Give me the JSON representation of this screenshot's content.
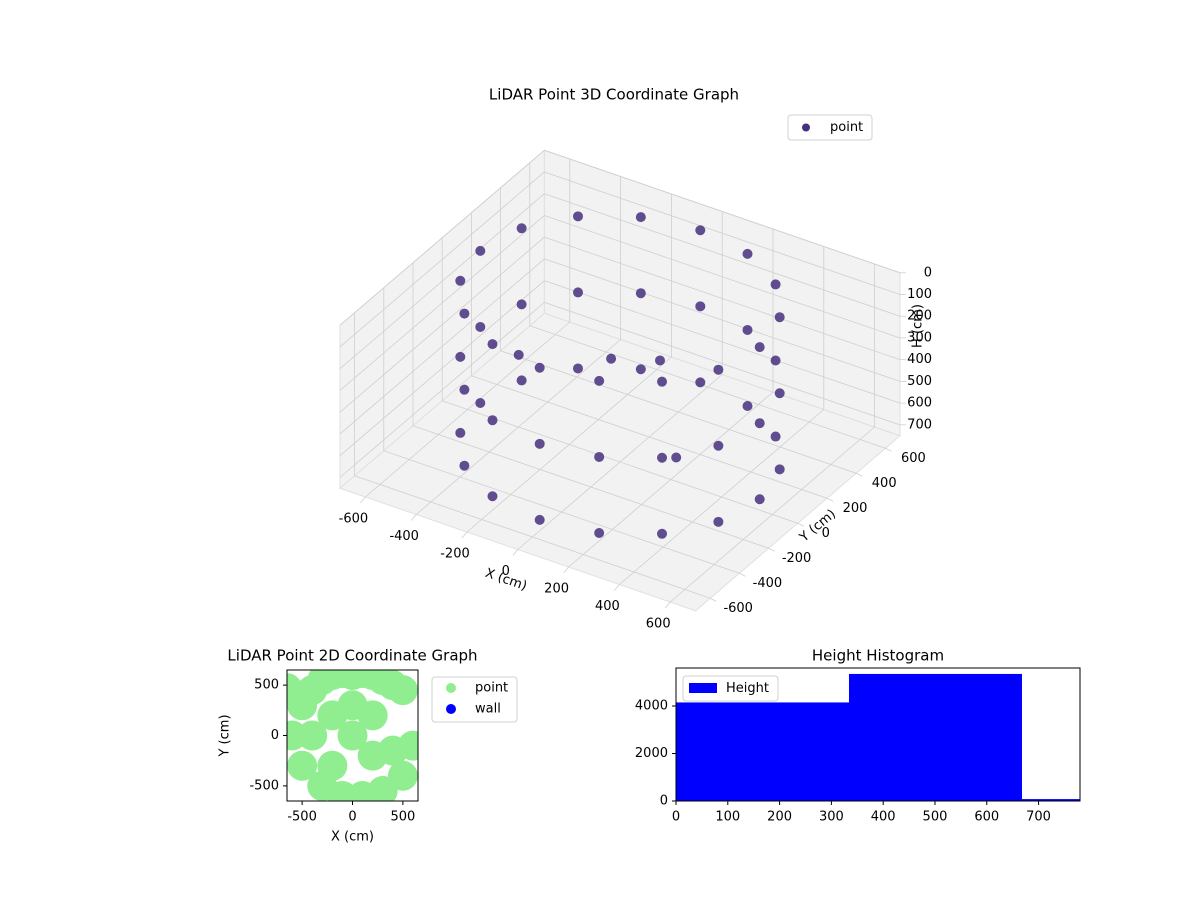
{
  "chart_data": [
    {
      "type": "scatter3d",
      "title": "LiDAR Point 3D Coordinate Graph",
      "xlabel": "X (cm)",
      "ylabel": "Y (cm)",
      "zlabel": "H (cm)",
      "xlim": [
        -700,
        700
      ],
      "ylim": [
        -700,
        700
      ],
      "zlim": [
        0,
        750
      ],
      "z_inverted": true,
      "xticks": [
        -600,
        -400,
        -200,
        0,
        200,
        400,
        600
      ],
      "yticks": [
        -600,
        -400,
        -200,
        0,
        200,
        400,
        600
      ],
      "zticks": [
        0,
        100,
        200,
        300,
        400,
        500,
        600,
        700
      ],
      "legend": "upper right",
      "grid": true,
      "series": [
        {
          "name": "point",
          "color": "#46307e",
          "x": [
            550,
            508,
            389,
            210,
            0,
            -210,
            -389,
            -508,
            -550,
            -508,
            -389,
            -210,
            0,
            210,
            389,
            508,
            550,
            508,
            389,
            210,
            0,
            -210,
            -389,
            -508,
            -550,
            -508,
            -389,
            -210,
            0,
            210,
            389,
            508,
            550,
            508,
            389,
            210,
            0,
            -210,
            -389,
            -508,
            -550,
            -508,
            -389,
            -210,
            0,
            210,
            389,
            508,
            100,
            -150,
            250,
            -600
          ],
          "y": [
            0,
            210,
            389,
            508,
            550,
            508,
            389,
            210,
            0,
            -210,
            -389,
            -508,
            -550,
            -508,
            -389,
            -210,
            0,
            210,
            389,
            508,
            550,
            508,
            389,
            210,
            0,
            -210,
            -389,
            -508,
            -550,
            -508,
            -389,
            -210,
            0,
            210,
            389,
            508,
            550,
            508,
            389,
            210,
            0,
            -210,
            -389,
            -508,
            -550,
            -508,
            -389,
            -210,
            100,
            200,
            -50,
            350
          ],
          "z": [
            0,
            0,
            0,
            0,
            0,
            0,
            0,
            0,
            0,
            0,
            0,
            0,
            0,
            0,
            0,
            0,
            350,
            350,
            350,
            350,
            350,
            350,
            350,
            350,
            350,
            350,
            350,
            350,
            350,
            350,
            350,
            350,
            700,
            700,
            700,
            700,
            700,
            700,
            700,
            700,
            700,
            700,
            700,
            700,
            700,
            700,
            700,
            700,
            300,
            450,
            600,
            700
          ]
        }
      ]
    },
    {
      "type": "scatter",
      "title": "LiDAR Point 2D Coordinate Graph",
      "xlabel": "X (cm)",
      "ylabel": "Y (cm)",
      "xlim": [
        -650,
        650
      ],
      "ylim": [
        -650,
        650
      ],
      "xticks": [
        -500,
        0,
        500
      ],
      "yticks": [
        -500,
        0,
        500
      ],
      "legend": "outside right",
      "series": [
        {
          "name": "point",
          "color": "#90ee90",
          "x": [
            -600,
            -500,
            -400,
            -300,
            -200,
            -100,
            0,
            100,
            200,
            300,
            400,
            500,
            600,
            -500,
            -300,
            -100,
            100,
            300,
            500,
            -400,
            -200,
            0,
            200,
            400,
            -200,
            0,
            200,
            -650,
            -500
          ],
          "y": [
            0,
            300,
            450,
            550,
            600,
            620,
            600,
            620,
            600,
            550,
            500,
            450,
            -100,
            -300,
            -500,
            -600,
            -600,
            -550,
            -400,
            0,
            200,
            0,
            -200,
            -150,
            -300,
            300,
            200,
            470,
            400
          ]
        },
        {
          "name": "wall",
          "color": "#0000ff",
          "x": [],
          "y": []
        }
      ]
    },
    {
      "type": "histogram",
      "title": "Height Histogram",
      "bins": [
        0,
        334,
        668,
        780
      ],
      "values": [
        4150,
        5350,
        80
      ],
      "series_name": "Height",
      "color": "#0000ff",
      "xlim": [
        0,
        780
      ],
      "ylim": [
        0,
        5600
      ],
      "xticks": [
        0,
        100,
        200,
        300,
        400,
        500,
        600,
        700
      ],
      "yticks": [
        0,
        2000,
        4000
      ],
      "legend": "upper left"
    }
  ]
}
